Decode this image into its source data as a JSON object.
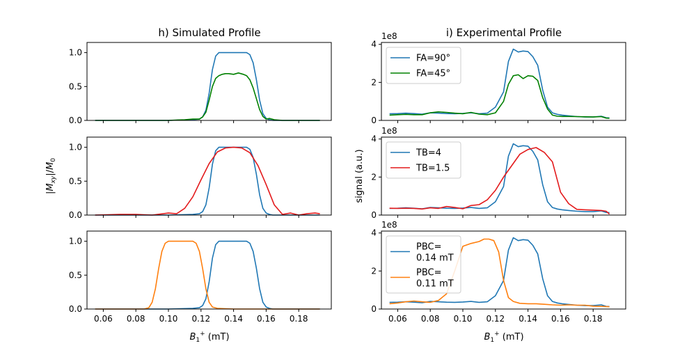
{
  "figure": {
    "left_column_title": "h) Simulated Profile",
    "right_column_title": "i) Experimental Profile",
    "left_ylabel": "|M_xy|/M_0",
    "right_ylabel": "signal (a.u.)",
    "xlabel": "B_1^+ (mT)",
    "multiplier_label": "1e8"
  },
  "chart_data": [
    {
      "id": "h1",
      "type": "line",
      "title": "h) Simulated Profile",
      "xlim": [
        0.05,
        0.2
      ],
      "ylim": [
        0,
        1.15
      ],
      "yticks": [
        0.0,
        0.5,
        1.0
      ],
      "ytick_labels": [
        "0.0",
        "0.5",
        "1.0"
      ],
      "xticks": [
        0.06,
        0.08,
        0.1,
        0.12,
        0.14,
        0.16,
        0.18
      ],
      "xtick_labels": [],
      "legend": null,
      "series": [
        {
          "color": "#1f77b4",
          "x": [
            0.055,
            0.08,
            0.1,
            0.115,
            0.119,
            0.121,
            0.123,
            0.125,
            0.127,
            0.129,
            0.131,
            0.133,
            0.135,
            0.14,
            0.145,
            0.148,
            0.15,
            0.152,
            0.154,
            0.156,
            0.158,
            0.16,
            0.162,
            0.164,
            0.17,
            0.18,
            0.193
          ],
          "y": [
            0.0,
            0.0,
            0.0,
            0.01,
            0.02,
            0.05,
            0.15,
            0.4,
            0.75,
            0.95,
            1.0,
            1.0,
            1.0,
            1.0,
            1.0,
            1.0,
            0.97,
            0.85,
            0.6,
            0.3,
            0.1,
            0.03,
            0.01,
            0.0,
            0.0,
            0.0,
            0.0
          ]
        },
        {
          "color": "#008000",
          "x": [
            0.055,
            0.08,
            0.1,
            0.11,
            0.115,
            0.119,
            0.121,
            0.123,
            0.125,
            0.127,
            0.129,
            0.131,
            0.133,
            0.135,
            0.137,
            0.14,
            0.143,
            0.146,
            0.148,
            0.15,
            0.152,
            0.154,
            0.156,
            0.158,
            0.16,
            0.162,
            0.165,
            0.17,
            0.18,
            0.193
          ],
          "y": [
            0.0,
            0.0,
            0.0,
            0.01,
            0.02,
            0.02,
            0.05,
            0.12,
            0.3,
            0.5,
            0.62,
            0.66,
            0.68,
            0.69,
            0.69,
            0.68,
            0.7,
            0.68,
            0.66,
            0.6,
            0.48,
            0.32,
            0.16,
            0.06,
            0.02,
            0.03,
            0.01,
            0.0,
            0.0,
            0.0
          ]
        }
      ]
    },
    {
      "id": "h2",
      "type": "line",
      "title": "",
      "xlim": [
        0.05,
        0.2
      ],
      "ylim": [
        0,
        1.15
      ],
      "yticks": [
        0.0,
        0.5,
        1.0
      ],
      "ytick_labels": [
        "0.0",
        "0.5",
        "1.0"
      ],
      "xticks": [
        0.06,
        0.08,
        0.1,
        0.12,
        0.14,
        0.16,
        0.18
      ],
      "xtick_labels": [],
      "legend": null,
      "series": [
        {
          "color": "#1f77b4",
          "x": [
            0.055,
            0.08,
            0.1,
            0.115,
            0.119,
            0.121,
            0.123,
            0.125,
            0.127,
            0.129,
            0.131,
            0.133,
            0.135,
            0.14,
            0.145,
            0.148,
            0.15,
            0.152,
            0.154,
            0.156,
            0.158,
            0.16,
            0.162,
            0.164,
            0.17,
            0.18,
            0.193
          ],
          "y": [
            0.0,
            0.0,
            0.0,
            0.01,
            0.02,
            0.05,
            0.15,
            0.4,
            0.75,
            0.95,
            1.0,
            1.0,
            1.0,
            1.0,
            1.0,
            1.0,
            0.97,
            0.85,
            0.6,
            0.3,
            0.1,
            0.03,
            0.01,
            0.0,
            0.0,
            0.0,
            0.0
          ]
        },
        {
          "color": "#e31a1c",
          "x": [
            0.055,
            0.07,
            0.08,
            0.09,
            0.1,
            0.105,
            0.11,
            0.115,
            0.12,
            0.125,
            0.13,
            0.135,
            0.14,
            0.145,
            0.15,
            0.155,
            0.16,
            0.165,
            0.17,
            0.175,
            0.18,
            0.185,
            0.19,
            0.193
          ],
          "y": [
            0.0,
            0.01,
            0.01,
            0.0,
            0.03,
            0.02,
            0.1,
            0.27,
            0.52,
            0.76,
            0.93,
            0.99,
            1.0,
            0.99,
            0.92,
            0.73,
            0.45,
            0.15,
            0.01,
            0.03,
            0.0,
            0.02,
            0.03,
            0.02
          ]
        }
      ]
    },
    {
      "id": "h3",
      "type": "line",
      "title": "",
      "xlim": [
        0.05,
        0.2
      ],
      "ylim": [
        0,
        1.15
      ],
      "yticks": [
        0.0,
        0.5,
        1.0
      ],
      "ytick_labels": [
        "0.0",
        "0.5",
        "1.0"
      ],
      "xticks": [
        0.06,
        0.08,
        0.1,
        0.12,
        0.14,
        0.16,
        0.18
      ],
      "xtick_labels": [
        "0.06",
        "0.08",
        "0.10",
        "0.12",
        "0.14",
        "0.16",
        "0.18"
      ],
      "legend": null,
      "series": [
        {
          "color": "#1f77b4",
          "x": [
            0.055,
            0.08,
            0.1,
            0.115,
            0.119,
            0.121,
            0.123,
            0.125,
            0.127,
            0.129,
            0.131,
            0.133,
            0.135,
            0.14,
            0.145,
            0.148,
            0.15,
            0.152,
            0.154,
            0.156,
            0.158,
            0.16,
            0.162,
            0.164,
            0.17,
            0.18,
            0.193
          ],
          "y": [
            0.0,
            0.0,
            0.0,
            0.01,
            0.02,
            0.05,
            0.15,
            0.4,
            0.75,
            0.95,
            1.0,
            1.0,
            1.0,
            1.0,
            1.0,
            1.0,
            0.97,
            0.85,
            0.6,
            0.3,
            0.1,
            0.03,
            0.01,
            0.0,
            0.0,
            0.0,
            0.0
          ]
        },
        {
          "color": "#ff7f0e",
          "x": [
            0.055,
            0.07,
            0.085,
            0.088,
            0.09,
            0.092,
            0.094,
            0.096,
            0.098,
            0.1,
            0.105,
            0.11,
            0.115,
            0.117,
            0.119,
            0.121,
            0.123,
            0.125,
            0.127,
            0.13,
            0.14,
            0.15,
            0.16,
            0.17,
            0.18,
            0.193
          ],
          "y": [
            0.0,
            0.0,
            0.0,
            0.02,
            0.1,
            0.3,
            0.6,
            0.85,
            0.97,
            1.0,
            1.0,
            1.0,
            1.0,
            0.97,
            0.85,
            0.6,
            0.3,
            0.1,
            0.03,
            0.01,
            0.0,
            0.0,
            0.0,
            0.0,
            0.0,
            0.0
          ]
        }
      ]
    },
    {
      "id": "i1",
      "type": "line",
      "title": "i) Experimental Profile",
      "xlim": [
        0.05,
        0.2
      ],
      "ylim": [
        0,
        410000000
      ],
      "yticks": [
        0,
        200000000,
        400000000
      ],
      "ytick_labels": [
        "0",
        "2",
        "4"
      ],
      "xticks": [
        0.06,
        0.08,
        0.1,
        0.12,
        0.14,
        0.16,
        0.18
      ],
      "xtick_labels": [],
      "legend": {
        "position": "upper left",
        "entries": [
          "FA=90$^\\circ$",
          "FA=45$^\\circ$"
        ],
        "display": [
          "FA=90°",
          "FA=45°"
        ]
      },
      "series": [
        {
          "name": "FA=90°",
          "color": "#1f77b4",
          "x": [
            0.055,
            0.06,
            0.065,
            0.07,
            0.075,
            0.08,
            0.085,
            0.09,
            0.095,
            0.1,
            0.105,
            0.11,
            0.115,
            0.12,
            0.125,
            0.128,
            0.131,
            0.134,
            0.137,
            0.14,
            0.143,
            0.146,
            0.149,
            0.152,
            0.155,
            0.158,
            0.161,
            0.165,
            0.17,
            0.175,
            0.18,
            0.185,
            0.188,
            0.19
          ],
          "y": [
            35000000,
            36000000,
            38000000,
            36000000,
            33000000,
            40000000,
            38000000,
            36000000,
            35000000,
            37000000,
            40000000,
            35000000,
            38000000,
            70000000,
            150000000,
            310000000,
            375000000,
            360000000,
            365000000,
            362000000,
            335000000,
            290000000,
            160000000,
            70000000,
            40000000,
            32000000,
            28000000,
            24000000,
            20000000,
            18000000,
            18000000,
            22000000,
            14000000,
            13000000
          ]
        },
        {
          "name": "FA=45°",
          "color": "#008000",
          "x": [
            0.055,
            0.06,
            0.065,
            0.07,
            0.075,
            0.08,
            0.085,
            0.09,
            0.095,
            0.1,
            0.105,
            0.11,
            0.115,
            0.12,
            0.125,
            0.128,
            0.131,
            0.134,
            0.137,
            0.14,
            0.143,
            0.146,
            0.149,
            0.152,
            0.155,
            0.158,
            0.161,
            0.165,
            0.17,
            0.175,
            0.18,
            0.185,
            0.188,
            0.19
          ],
          "y": [
            28000000,
            30000000,
            32000000,
            30000000,
            30000000,
            40000000,
            45000000,
            42000000,
            38000000,
            35000000,
            42000000,
            33000000,
            30000000,
            40000000,
            100000000,
            190000000,
            235000000,
            240000000,
            220000000,
            235000000,
            232000000,
            210000000,
            120000000,
            60000000,
            28000000,
            22000000,
            21000000,
            21000000,
            20000000,
            19000000,
            18000000,
            20000000,
            12000000,
            11000000
          ]
        }
      ]
    },
    {
      "id": "i2",
      "type": "line",
      "title": "",
      "xlim": [
        0.05,
        0.2
      ],
      "ylim": [
        0,
        410000000
      ],
      "yticks": [
        0,
        200000000,
        400000000
      ],
      "ytick_labels": [
        "0",
        "2",
        "4"
      ],
      "xticks": [
        0.06,
        0.08,
        0.1,
        0.12,
        0.14,
        0.16,
        0.18
      ],
      "xtick_labels": [],
      "legend": {
        "position": "upper left",
        "entries": [
          "TB=4",
          "TB=1.5"
        ],
        "display": [
          "TB=4",
          "TB=1.5"
        ]
      },
      "series": [
        {
          "name": "TB=4",
          "color": "#1f77b4",
          "x": [
            0.055,
            0.06,
            0.065,
            0.07,
            0.075,
            0.08,
            0.085,
            0.09,
            0.095,
            0.1,
            0.105,
            0.11,
            0.115,
            0.12,
            0.125,
            0.128,
            0.131,
            0.134,
            0.137,
            0.14,
            0.143,
            0.146,
            0.149,
            0.152,
            0.155,
            0.158,
            0.161,
            0.165,
            0.17,
            0.175,
            0.18,
            0.185,
            0.188,
            0.19
          ],
          "y": [
            35000000,
            36000000,
            38000000,
            36000000,
            33000000,
            40000000,
            38000000,
            36000000,
            35000000,
            37000000,
            40000000,
            35000000,
            38000000,
            70000000,
            150000000,
            310000000,
            375000000,
            360000000,
            365000000,
            362000000,
            335000000,
            290000000,
            160000000,
            70000000,
            40000000,
            32000000,
            28000000,
            24000000,
            20000000,
            18000000,
            18000000,
            22000000,
            14000000,
            13000000
          ]
        },
        {
          "name": "TB=1.5",
          "color": "#e31a1c",
          "x": [
            0.055,
            0.06,
            0.065,
            0.07,
            0.075,
            0.08,
            0.085,
            0.09,
            0.095,
            0.1,
            0.105,
            0.11,
            0.115,
            0.12,
            0.125,
            0.13,
            0.135,
            0.14,
            0.145,
            0.15,
            0.155,
            0.16,
            0.165,
            0.17,
            0.175,
            0.18,
            0.185,
            0.188,
            0.19
          ],
          "y": [
            36000000,
            35000000,
            36000000,
            35000000,
            32000000,
            38000000,
            35000000,
            45000000,
            40000000,
            33000000,
            50000000,
            55000000,
            80000000,
            130000000,
            200000000,
            260000000,
            320000000,
            345000000,
            355000000,
            330000000,
            280000000,
            120000000,
            60000000,
            30000000,
            28000000,
            26000000,
            24000000,
            20000000,
            5000000
          ]
        }
      ]
    },
    {
      "id": "i3",
      "type": "line",
      "title": "",
      "xlim": [
        0.05,
        0.2
      ],
      "ylim": [
        0,
        410000000
      ],
      "yticks": [
        0,
        200000000,
        400000000
      ],
      "ytick_labels": [
        "0",
        "2",
        "4"
      ],
      "xticks": [
        0.06,
        0.08,
        0.1,
        0.12,
        0.14,
        0.16,
        0.18
      ],
      "xtick_labels": [
        "0.06",
        "0.08",
        "0.10",
        "0.12",
        "0.14",
        "0.16",
        "0.18"
      ],
      "legend": {
        "position": "upper left",
        "entries": [
          "PBC=\n0.14 mT",
          "PBC=\n0.11 mT"
        ],
        "display": [
          "PBC=|0.14 mT",
          "PBC=|0.11 mT"
        ]
      },
      "series": [
        {
          "name": "PBC=|0.14 mT",
          "color": "#1f77b4",
          "x": [
            0.055,
            0.06,
            0.065,
            0.07,
            0.075,
            0.08,
            0.085,
            0.09,
            0.095,
            0.1,
            0.105,
            0.11,
            0.115,
            0.12,
            0.125,
            0.128,
            0.131,
            0.134,
            0.137,
            0.14,
            0.143,
            0.146,
            0.149,
            0.152,
            0.155,
            0.158,
            0.161,
            0.165,
            0.17,
            0.175,
            0.18,
            0.185,
            0.188,
            0.19
          ],
          "y": [
            35000000,
            36000000,
            38000000,
            36000000,
            33000000,
            40000000,
            38000000,
            36000000,
            35000000,
            37000000,
            40000000,
            35000000,
            38000000,
            70000000,
            150000000,
            310000000,
            375000000,
            360000000,
            365000000,
            362000000,
            335000000,
            290000000,
            160000000,
            70000000,
            40000000,
            32000000,
            28000000,
            24000000,
            20000000,
            18000000,
            18000000,
            22000000,
            14000000,
            13000000
          ]
        },
        {
          "name": "PBC=|0.11 mT",
          "color": "#ff7f0e",
          "x": [
            0.055,
            0.06,
            0.065,
            0.07,
            0.075,
            0.08,
            0.085,
            0.09,
            0.095,
            0.1,
            0.105,
            0.11,
            0.113,
            0.116,
            0.119,
            0.122,
            0.125,
            0.128,
            0.131,
            0.135,
            0.14,
            0.145,
            0.15,
            0.155,
            0.16,
            0.165,
            0.17,
            0.175,
            0.18,
            0.185,
            0.19
          ],
          "y": [
            28000000,
            32000000,
            38000000,
            42000000,
            38000000,
            35000000,
            45000000,
            80000000,
            200000000,
            330000000,
            345000000,
            355000000,
            368000000,
            368000000,
            360000000,
            300000000,
            150000000,
            60000000,
            40000000,
            30000000,
            28000000,
            28000000,
            25000000,
            22000000,
            20000000,
            22000000,
            20000000,
            20000000,
            15000000,
            14000000,
            12000000
          ]
        }
      ]
    }
  ]
}
